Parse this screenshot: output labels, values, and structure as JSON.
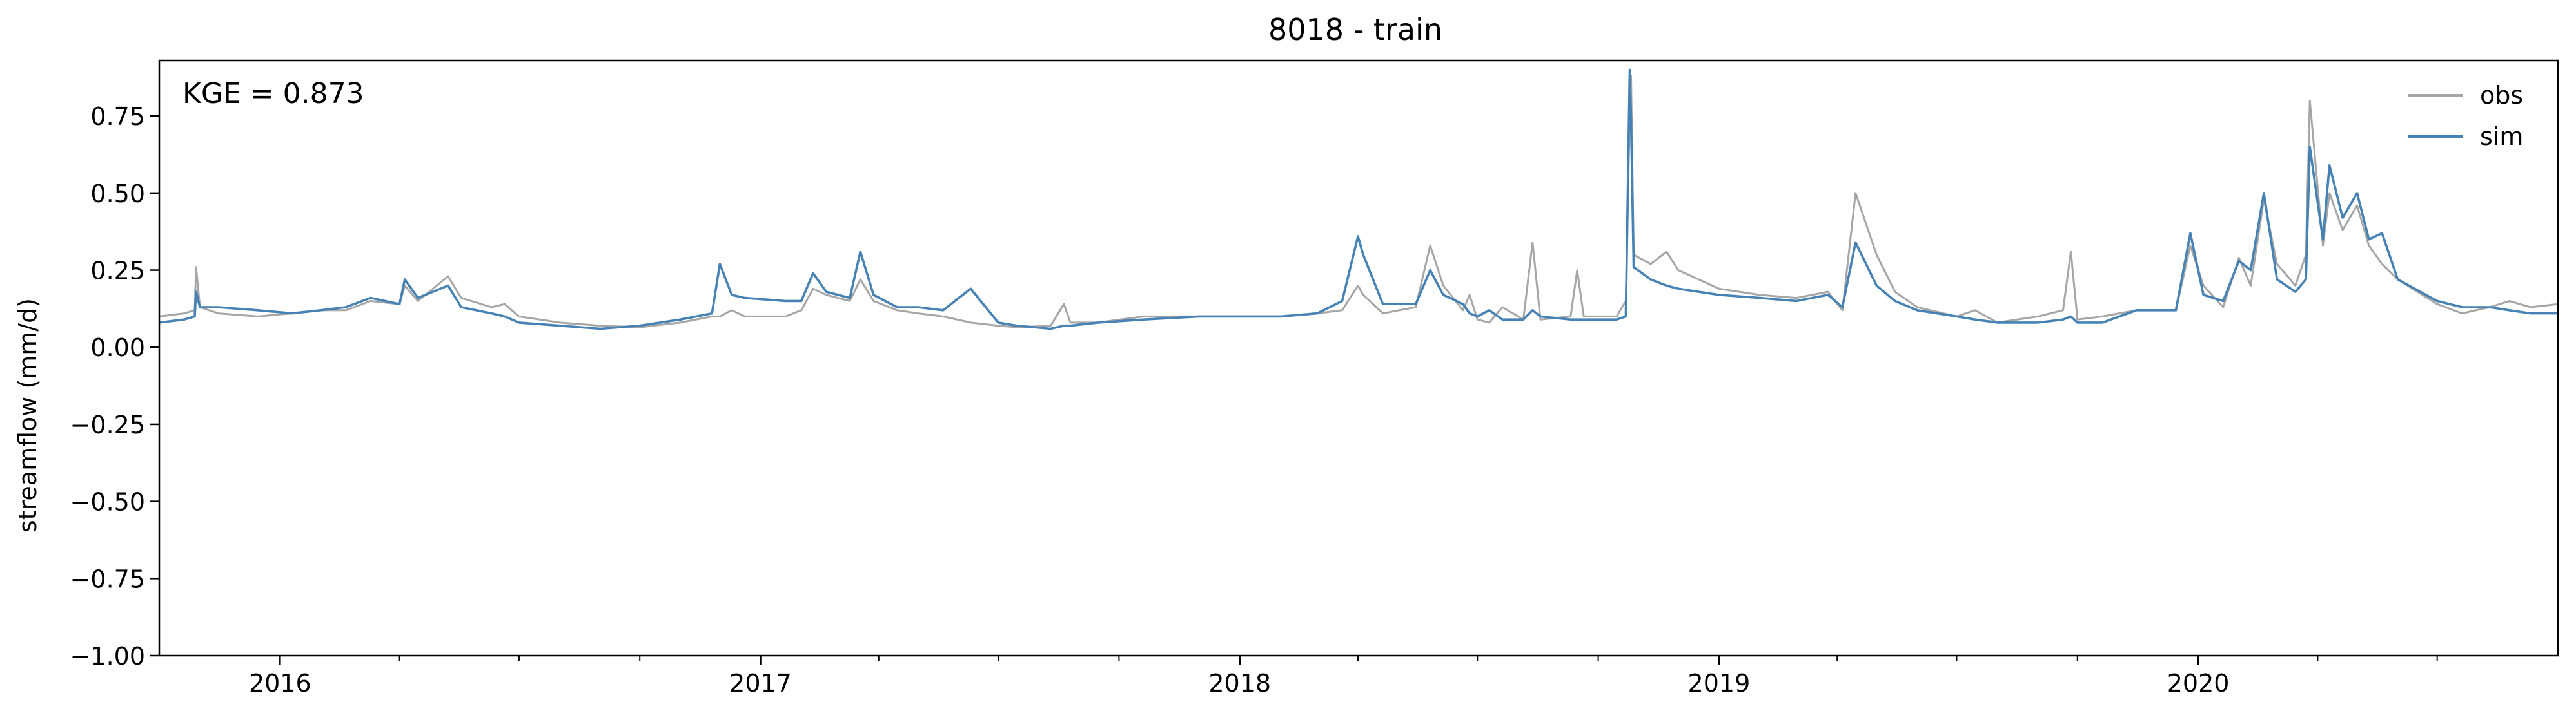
{
  "chart_data": {
    "type": "line",
    "title": "8018 - train",
    "xlabel": "",
    "ylabel": "streamflow (mm/d)",
    "annotation": "KGE = 0.873",
    "legend": {
      "placement": "top-right",
      "entries": [
        "obs",
        "sim"
      ]
    },
    "grid": false,
    "xlim": [
      "2015-10-01",
      "2020-10-01"
    ],
    "ylim": [
      -1.0,
      0.93
    ],
    "x_ticks": [
      {
        "date": "2016-01-01",
        "label": "2016"
      },
      {
        "date": "2017-01-01",
        "label": "2017"
      },
      {
        "date": "2018-01-01",
        "label": "2018"
      },
      {
        "date": "2019-01-01",
        "label": "2019"
      },
      {
        "date": "2020-01-01",
        "label": "2020"
      }
    ],
    "x_minor_ticks": [
      "2016-04-01",
      "2016-07-01",
      "2016-10-01",
      "2017-04-01",
      "2017-07-01",
      "2017-10-01",
      "2018-04-01",
      "2018-07-01",
      "2018-10-01",
      "2019-04-01",
      "2019-07-01",
      "2019-10-01",
      "2020-04-01",
      "2020-07-01"
    ],
    "y_ticks": [
      {
        "value": 0.75,
        "label": "0.75"
      },
      {
        "value": 0.5,
        "label": "0.50"
      },
      {
        "value": 0.25,
        "label": "0.25"
      },
      {
        "value": 0.0,
        "label": "0.00"
      },
      {
        "value": -0.25,
        "label": "−0.25"
      },
      {
        "value": -0.5,
        "label": "−0.50"
      },
      {
        "value": -0.75,
        "label": "−0.75"
      },
      {
        "value": -1.0,
        "label": "−1.00"
      }
    ],
    "series": [
      {
        "name": "obs",
        "color": "#a6a6a6",
        "points": [
          [
            "2015-10-01",
            0.1
          ],
          [
            "2015-10-20",
            0.11
          ],
          [
            "2015-10-28",
            0.12
          ],
          [
            "2015-10-29",
            0.26
          ],
          [
            "2015-11-01",
            0.13
          ],
          [
            "2015-11-15",
            0.11
          ],
          [
            "2015-12-15",
            0.1
          ],
          [
            "2016-01-10",
            0.11
          ],
          [
            "2016-02-01",
            0.12
          ],
          [
            "2016-02-20",
            0.12
          ],
          [
            "2016-03-10",
            0.15
          ],
          [
            "2016-04-01",
            0.14
          ],
          [
            "2016-04-05",
            0.2
          ],
          [
            "2016-04-15",
            0.15
          ],
          [
            "2016-05-08",
            0.23
          ],
          [
            "2016-05-18",
            0.16
          ],
          [
            "2016-06-10",
            0.13
          ],
          [
            "2016-06-20",
            0.14
          ],
          [
            "2016-07-01",
            0.1
          ],
          [
            "2016-08-01",
            0.08
          ],
          [
            "2016-09-01",
            0.07
          ],
          [
            "2016-10-01",
            0.065
          ],
          [
            "2016-11-01",
            0.08
          ],
          [
            "2016-11-25",
            0.1
          ],
          [
            "2016-12-01",
            0.1
          ],
          [
            "2016-12-10",
            0.12
          ],
          [
            "2016-12-20",
            0.1
          ],
          [
            "2017-01-20",
            0.1
          ],
          [
            "2017-02-01",
            0.12
          ],
          [
            "2017-02-10",
            0.19
          ],
          [
            "2017-02-20",
            0.17
          ],
          [
            "2017-03-10",
            0.15
          ],
          [
            "2017-03-18",
            0.22
          ],
          [
            "2017-03-28",
            0.15
          ],
          [
            "2017-04-15",
            0.12
          ],
          [
            "2017-05-01",
            0.11
          ],
          [
            "2017-05-20",
            0.1
          ],
          [
            "2017-06-10",
            0.08
          ],
          [
            "2017-07-01",
            0.07
          ],
          [
            "2017-07-15",
            0.065
          ],
          [
            "2017-08-10",
            0.07
          ],
          [
            "2017-08-20",
            0.14
          ],
          [
            "2017-08-25",
            0.08
          ],
          [
            "2017-09-15",
            0.08
          ],
          [
            "2017-10-20",
            0.1
          ],
          [
            "2017-12-01",
            0.1
          ],
          [
            "2018-01-01",
            0.1
          ],
          [
            "2018-02-01",
            0.1
          ],
          [
            "2018-03-01",
            0.11
          ],
          [
            "2018-03-20",
            0.12
          ],
          [
            "2018-04-01",
            0.2
          ],
          [
            "2018-04-05",
            0.17
          ],
          [
            "2018-04-20",
            0.11
          ],
          [
            "2018-05-15",
            0.13
          ],
          [
            "2018-05-26",
            0.33
          ],
          [
            "2018-06-05",
            0.2
          ],
          [
            "2018-06-20",
            0.12
          ],
          [
            "2018-06-25",
            0.17
          ],
          [
            "2018-07-01",
            0.09
          ],
          [
            "2018-07-10",
            0.08
          ],
          [
            "2018-07-20",
            0.13
          ],
          [
            "2018-08-05",
            0.09
          ],
          [
            "2018-08-12",
            0.34
          ],
          [
            "2018-08-18",
            0.09
          ],
          [
            "2018-09-10",
            0.1
          ],
          [
            "2018-09-15",
            0.25
          ],
          [
            "2018-09-20",
            0.1
          ],
          [
            "2018-10-15",
            0.1
          ],
          [
            "2018-10-22",
            0.15
          ],
          [
            "2018-10-25",
            0.75
          ],
          [
            "2018-10-26",
            0.88
          ],
          [
            "2018-10-28",
            0.3
          ],
          [
            "2018-11-10",
            0.27
          ],
          [
            "2018-11-22",
            0.31
          ],
          [
            "2018-12-01",
            0.25
          ],
          [
            "2019-01-01",
            0.19
          ],
          [
            "2019-02-01",
            0.17
          ],
          [
            "2019-03-01",
            0.16
          ],
          [
            "2019-03-25",
            0.18
          ],
          [
            "2019-04-05",
            0.12
          ],
          [
            "2019-04-15",
            0.5
          ],
          [
            "2019-05-01",
            0.3
          ],
          [
            "2019-05-15",
            0.18
          ],
          [
            "2019-06-01",
            0.13
          ],
          [
            "2019-07-01",
            0.1
          ],
          [
            "2019-07-15",
            0.12
          ],
          [
            "2019-08-01",
            0.08
          ],
          [
            "2019-09-01",
            0.1
          ],
          [
            "2019-09-20",
            0.12
          ],
          [
            "2019-09-26",
            0.31
          ],
          [
            "2019-10-01",
            0.09
          ],
          [
            "2019-10-20",
            0.1
          ],
          [
            "2019-11-15",
            0.12
          ],
          [
            "2019-12-15",
            0.12
          ],
          [
            "2019-12-26",
            0.33
          ],
          [
            "2020-01-05",
            0.2
          ],
          [
            "2020-01-20",
            0.13
          ],
          [
            "2020-02-01",
            0.29
          ],
          [
            "2020-02-10",
            0.2
          ],
          [
            "2020-02-20",
            0.48
          ],
          [
            "2020-03-01",
            0.27
          ],
          [
            "2020-03-15",
            0.2
          ],
          [
            "2020-03-23",
            0.3
          ],
          [
            "2020-03-26",
            0.8
          ],
          [
            "2020-04-05",
            0.33
          ],
          [
            "2020-04-10",
            0.5
          ],
          [
            "2020-04-20",
            0.38
          ],
          [
            "2020-05-01",
            0.46
          ],
          [
            "2020-05-10",
            0.33
          ],
          [
            "2020-05-20",
            0.27
          ],
          [
            "2020-06-01",
            0.22
          ],
          [
            "2020-07-01",
            0.14
          ],
          [
            "2020-07-20",
            0.11
          ],
          [
            "2020-08-10",
            0.13
          ],
          [
            "2020-08-25",
            0.15
          ],
          [
            "2020-09-10",
            0.13
          ],
          [
            "2020-10-01",
            0.14
          ]
        ]
      },
      {
        "name": "sim",
        "color": "#4682b4",
        "points": [
          [
            "2015-10-01",
            0.08
          ],
          [
            "2015-10-20",
            0.09
          ],
          [
            "2015-10-28",
            0.1
          ],
          [
            "2015-10-29",
            0.18
          ],
          [
            "2015-11-01",
            0.13
          ],
          [
            "2015-11-15",
            0.13
          ],
          [
            "2015-12-15",
            0.12
          ],
          [
            "2016-01-10",
            0.11
          ],
          [
            "2016-02-01",
            0.12
          ],
          [
            "2016-02-20",
            0.13
          ],
          [
            "2016-03-10",
            0.16
          ],
          [
            "2016-04-01",
            0.14
          ],
          [
            "2016-04-05",
            0.22
          ],
          [
            "2016-04-15",
            0.16
          ],
          [
            "2016-05-08",
            0.2
          ],
          [
            "2016-05-18",
            0.13
          ],
          [
            "2016-06-10",
            0.11
          ],
          [
            "2016-06-20",
            0.1
          ],
          [
            "2016-07-01",
            0.08
          ],
          [
            "2016-08-01",
            0.07
          ],
          [
            "2016-09-01",
            0.06
          ],
          [
            "2016-10-01",
            0.07
          ],
          [
            "2016-11-01",
            0.09
          ],
          [
            "2016-11-25",
            0.11
          ],
          [
            "2016-12-01",
            0.27
          ],
          [
            "2016-12-10",
            0.17
          ],
          [
            "2016-12-20",
            0.16
          ],
          [
            "2017-01-20",
            0.15
          ],
          [
            "2017-02-01",
            0.15
          ],
          [
            "2017-02-10",
            0.24
          ],
          [
            "2017-02-20",
            0.18
          ],
          [
            "2017-03-10",
            0.16
          ],
          [
            "2017-03-18",
            0.31
          ],
          [
            "2017-03-28",
            0.17
          ],
          [
            "2017-04-15",
            0.13
          ],
          [
            "2017-05-01",
            0.13
          ],
          [
            "2017-05-20",
            0.12
          ],
          [
            "2017-06-10",
            0.19
          ],
          [
            "2017-07-01",
            0.08
          ],
          [
            "2017-07-15",
            0.07
          ],
          [
            "2017-08-10",
            0.06
          ],
          [
            "2017-08-20",
            0.07
          ],
          [
            "2017-08-25",
            0.07
          ],
          [
            "2017-09-15",
            0.08
          ],
          [
            "2017-10-20",
            0.09
          ],
          [
            "2017-12-01",
            0.1
          ],
          [
            "2018-01-01",
            0.1
          ],
          [
            "2018-02-01",
            0.1
          ],
          [
            "2018-03-01",
            0.11
          ],
          [
            "2018-03-20",
            0.15
          ],
          [
            "2018-04-01",
            0.36
          ],
          [
            "2018-04-05",
            0.3
          ],
          [
            "2018-04-20",
            0.14
          ],
          [
            "2018-05-15",
            0.14
          ],
          [
            "2018-05-26",
            0.25
          ],
          [
            "2018-06-05",
            0.17
          ],
          [
            "2018-06-20",
            0.14
          ],
          [
            "2018-06-25",
            0.11
          ],
          [
            "2018-07-01",
            0.1
          ],
          [
            "2018-07-10",
            0.12
          ],
          [
            "2018-07-20",
            0.09
          ],
          [
            "2018-08-05",
            0.09
          ],
          [
            "2018-08-12",
            0.12
          ],
          [
            "2018-08-18",
            0.1
          ],
          [
            "2018-09-10",
            0.09
          ],
          [
            "2018-09-15",
            0.09
          ],
          [
            "2018-09-20",
            0.09
          ],
          [
            "2018-10-15",
            0.09
          ],
          [
            "2018-10-22",
            0.1
          ],
          [
            "2018-10-25",
            0.9
          ],
          [
            "2018-10-26",
            0.74
          ],
          [
            "2018-10-28",
            0.26
          ],
          [
            "2018-11-10",
            0.22
          ],
          [
            "2018-11-22",
            0.2
          ],
          [
            "2018-12-01",
            0.19
          ],
          [
            "2019-01-01",
            0.17
          ],
          [
            "2019-02-01",
            0.16
          ],
          [
            "2019-03-01",
            0.15
          ],
          [
            "2019-03-25",
            0.17
          ],
          [
            "2019-04-05",
            0.13
          ],
          [
            "2019-04-15",
            0.34
          ],
          [
            "2019-05-01",
            0.2
          ],
          [
            "2019-05-15",
            0.15
          ],
          [
            "2019-06-01",
            0.12
          ],
          [
            "2019-07-01",
            0.1
          ],
          [
            "2019-07-15",
            0.09
          ],
          [
            "2019-08-01",
            0.08
          ],
          [
            "2019-09-01",
            0.08
          ],
          [
            "2019-09-20",
            0.09
          ],
          [
            "2019-09-26",
            0.1
          ],
          [
            "2019-10-01",
            0.08
          ],
          [
            "2019-10-20",
            0.08
          ],
          [
            "2019-11-15",
            0.12
          ],
          [
            "2019-12-15",
            0.12
          ],
          [
            "2019-12-26",
            0.37
          ],
          [
            "2020-01-05",
            0.17
          ],
          [
            "2020-01-20",
            0.15
          ],
          [
            "2020-02-01",
            0.28
          ],
          [
            "2020-02-10",
            0.25
          ],
          [
            "2020-02-20",
            0.5
          ],
          [
            "2020-03-01",
            0.22
          ],
          [
            "2020-03-15",
            0.18
          ],
          [
            "2020-03-23",
            0.22
          ],
          [
            "2020-03-26",
            0.65
          ],
          [
            "2020-04-05",
            0.35
          ],
          [
            "2020-04-10",
            0.59
          ],
          [
            "2020-04-20",
            0.42
          ],
          [
            "2020-05-01",
            0.5
          ],
          [
            "2020-05-10",
            0.35
          ],
          [
            "2020-05-20",
            0.37
          ],
          [
            "2020-06-01",
            0.22
          ],
          [
            "2020-07-01",
            0.15
          ],
          [
            "2020-07-20",
            0.13
          ],
          [
            "2020-08-10",
            0.13
          ],
          [
            "2020-08-25",
            0.12
          ],
          [
            "2020-09-10",
            0.11
          ],
          [
            "2020-10-01",
            0.11
          ]
        ]
      }
    ]
  }
}
